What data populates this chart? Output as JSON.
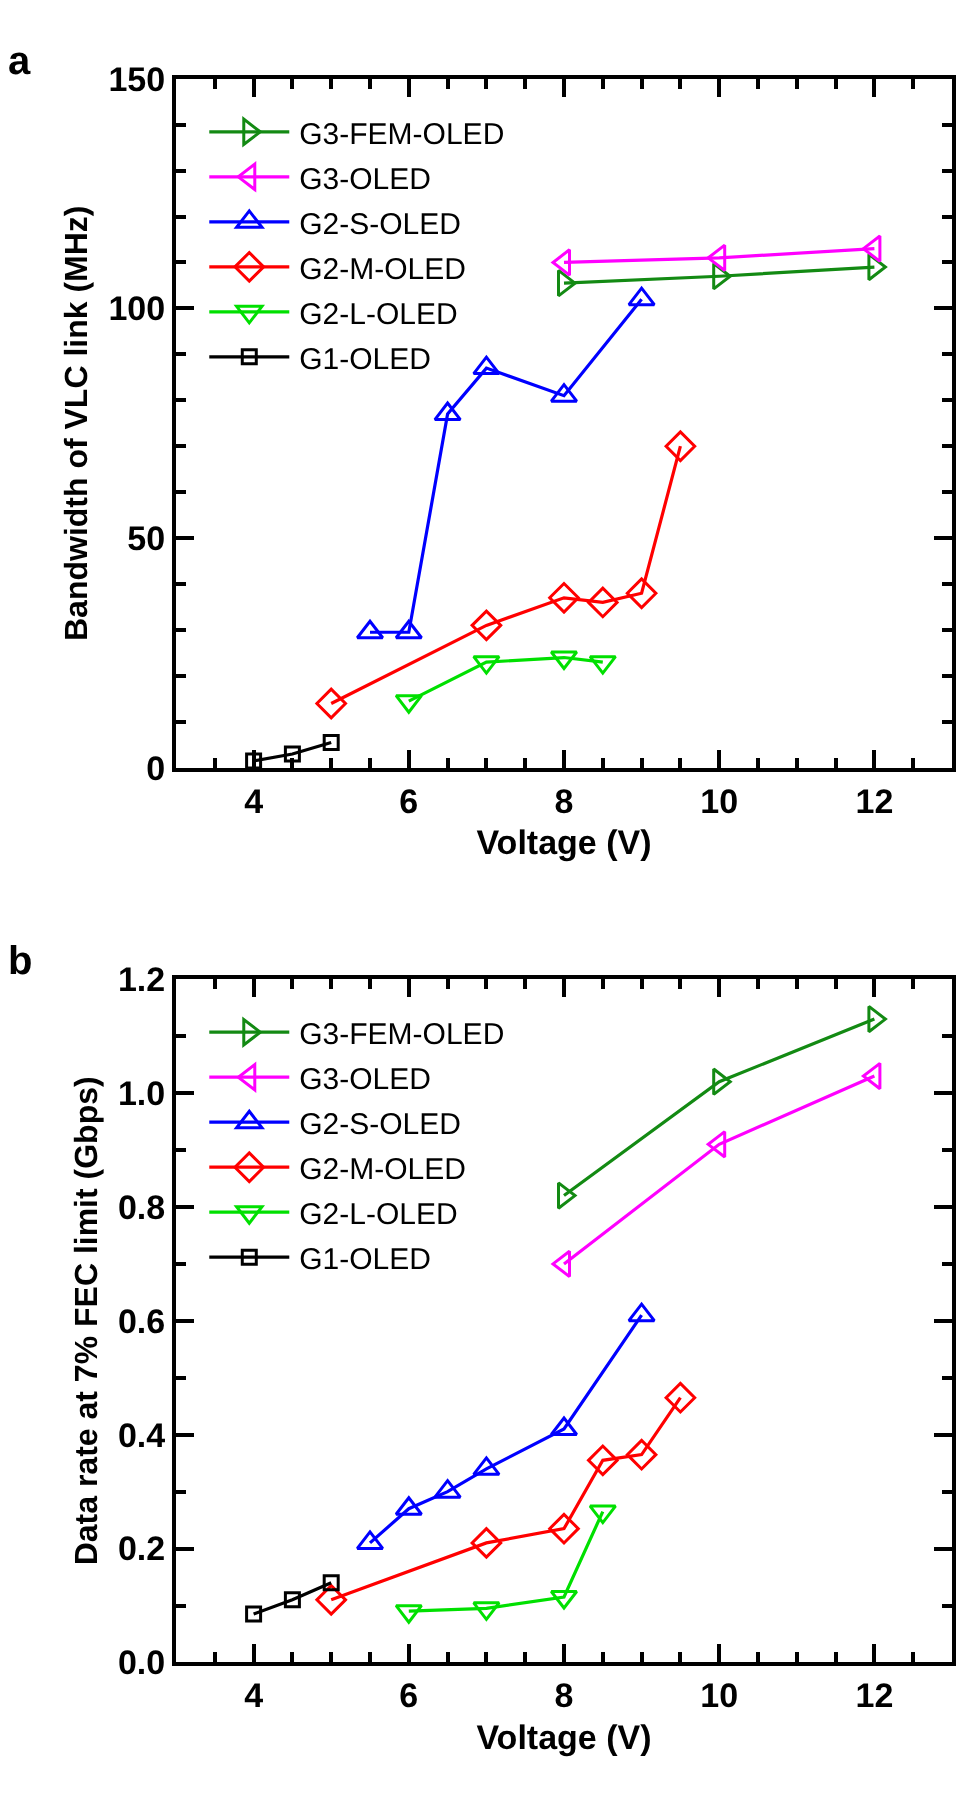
{
  "chart_data": [
    {
      "type": "line",
      "title": "a",
      "xlabel": "Voltage (V)",
      "ylabel": "Bandwidth of VLC link (MHz)",
      "xlim": [
        3,
        13
      ],
      "ylim": [
        0,
        150
      ],
      "xticks": [
        {
          "value": 3.5,
          "label": null
        },
        4,
        {
          "value": 4.5,
          "label": null
        },
        {
          "value": 5,
          "label": null
        },
        {
          "value": 5.5,
          "label": null
        },
        6,
        {
          "value": 6.5,
          "label": null
        },
        {
          "value": 7,
          "label": null
        },
        {
          "value": 7.5,
          "label": null
        },
        8,
        {
          "value": 8.5,
          "label": null
        },
        {
          "value": 9,
          "label": null
        },
        {
          "value": 9.5,
          "label": null
        },
        10,
        {
          "value": 10.5,
          "label": null
        },
        {
          "value": 11,
          "label": null
        },
        {
          "value": 11.5,
          "label": null
        },
        12,
        {
          "value": 12.5,
          "label": null
        }
      ],
      "yticks": [
        0,
        {
          "value": 10,
          "label": null
        },
        {
          "value": 20,
          "label": null
        },
        {
          "value": 30,
          "label": null
        },
        {
          "value": 40,
          "label": null
        },
        50,
        {
          "value": 60,
          "label": null
        },
        {
          "value": 70,
          "label": null
        },
        {
          "value": 80,
          "label": null
        },
        {
          "value": 90,
          "label": null
        },
        100,
        {
          "value": 110,
          "label": null
        },
        {
          "value": 120,
          "label": null
        },
        {
          "value": 130,
          "label": null
        },
        {
          "value": 140,
          "label": null
        },
        150
      ],
      "legend": "top left",
      "line_style": "solid",
      "series": [
        {
          "name": "G3-FEM-OLED",
          "color": "#138a13",
          "marker": "triangle-right",
          "x": [
            8,
            10,
            12
          ],
          "values": [
            105.5,
            107,
            109
          ]
        },
        {
          "name": "G3-OLED",
          "color": "#ff00ff",
          "marker": "triangle-left",
          "x": [
            8,
            10,
            12
          ],
          "values": [
            110,
            111,
            113
          ]
        },
        {
          "name": "G2-S-OLED",
          "color": "#0000ff",
          "marker": "triangle-up",
          "x": [
            5.5,
            6,
            6.5,
            7,
            8,
            9
          ],
          "values": [
            29.5,
            29.5,
            77,
            87,
            81,
            102
          ]
        },
        {
          "name": "G2-M-OLED",
          "color": "#ff0000",
          "marker": "diamond",
          "x": [
            5,
            7,
            8,
            8.5,
            9,
            9.5
          ],
          "values": [
            14,
            31,
            37,
            36,
            38,
            70
          ]
        },
        {
          "name": "G2-L-OLED",
          "color": "#00e000",
          "marker": "triangle-down",
          "x": [
            6,
            7,
            8,
            8.5
          ],
          "values": [
            14.5,
            23,
            24,
            23
          ]
        },
        {
          "name": "G1-OLED",
          "color": "#000000",
          "marker": "square",
          "x": [
            4,
            4.5,
            5
          ],
          "values": [
            1.5,
            3,
            5.5
          ]
        }
      ]
    },
    {
      "type": "line",
      "title": "b",
      "xlabel": "Voltage (V)",
      "ylabel": "Data rate at 7% FEC limit (Gbps)",
      "xlim": [
        3,
        13
      ],
      "ylim": [
        0,
        1.2
      ],
      "xticks": [
        {
          "value": 3.5,
          "label": null
        },
        4,
        {
          "value": 4.5,
          "label": null
        },
        {
          "value": 5,
          "label": null
        },
        {
          "value": 5.5,
          "label": null
        },
        6,
        {
          "value": 6.5,
          "label": null
        },
        {
          "value": 7,
          "label": null
        },
        {
          "value": 7.5,
          "label": null
        },
        8,
        {
          "value": 8.5,
          "label": null
        },
        {
          "value": 9,
          "label": null
        },
        {
          "value": 9.5,
          "label": null
        },
        10,
        {
          "value": 10.5,
          "label": null
        },
        {
          "value": 11,
          "label": null
        },
        {
          "value": 11.5,
          "label": null
        },
        12,
        {
          "value": 12.5,
          "label": null
        }
      ],
      "yticks": [
        {
          "value": 0,
          "label": "0.0"
        },
        {
          "value": 0.1,
          "label": null
        },
        {
          "value": 0.2,
          "label": "0.2"
        },
        {
          "value": 0.3,
          "label": null
        },
        {
          "value": 0.4,
          "label": "0.4"
        },
        {
          "value": 0.5,
          "label": null
        },
        {
          "value": 0.6,
          "label": "0.6"
        },
        {
          "value": 0.7,
          "label": null
        },
        {
          "value": 0.8,
          "label": "0.8"
        },
        {
          "value": 0.9,
          "label": null
        },
        {
          "value": 1.0,
          "label": "1.0"
        },
        {
          "value": 1.1,
          "label": null
        },
        {
          "value": 1.2,
          "label": "1.2"
        }
      ],
      "legend": "top left",
      "line_style": "solid",
      "series": [
        {
          "name": "G3-FEM-OLED",
          "color": "#138a13",
          "marker": "triangle-right",
          "x": [
            8,
            10,
            12
          ],
          "values": [
            0.82,
            1.02,
            1.13
          ]
        },
        {
          "name": "G3-OLED",
          "color": "#ff00ff",
          "marker": "triangle-left",
          "x": [
            8,
            10,
            12
          ],
          "values": [
            0.7,
            0.91,
            1.03
          ]
        },
        {
          "name": "G2-S-OLED",
          "color": "#0000ff",
          "marker": "triangle-up",
          "x": [
            5.5,
            6,
            6.5,
            7,
            8,
            9
          ],
          "values": [
            0.21,
            0.27,
            0.3,
            0.34,
            0.41,
            0.61
          ]
        },
        {
          "name": "G2-M-OLED",
          "color": "#ff0000",
          "marker": "diamond",
          "x": [
            5,
            7,
            8,
            8.5,
            9,
            9.5
          ],
          "values": [
            0.11,
            0.21,
            0.235,
            0.355,
            0.365,
            0.465
          ]
        },
        {
          "name": "G2-L-OLED",
          "color": "#00e000",
          "marker": "triangle-down",
          "x": [
            6,
            7,
            8,
            8.5
          ],
          "values": [
            0.09,
            0.095,
            0.115,
            0.265
          ]
        },
        {
          "name": "G1-OLED",
          "color": "#000000",
          "marker": "square",
          "x": [
            4,
            4.5,
            5
          ],
          "values": [
            0.085,
            0.11,
            0.14
          ]
        }
      ]
    }
  ]
}
